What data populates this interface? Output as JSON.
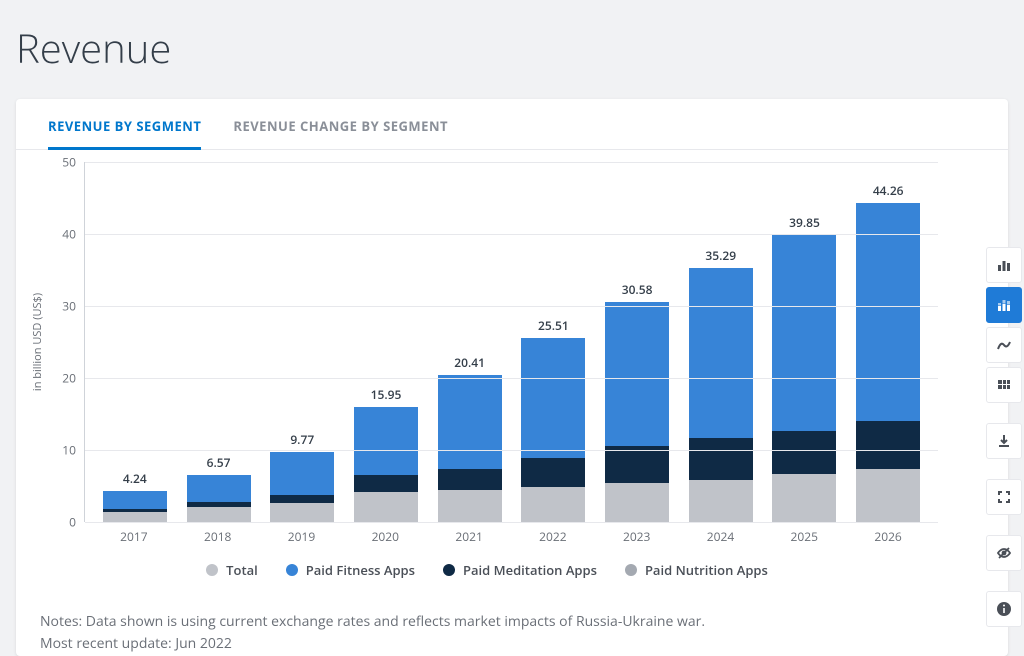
{
  "header": {
    "title": "Revenue"
  },
  "tabs": [
    {
      "label": "REVENUE BY SEGMENT",
      "active": true
    },
    {
      "label": "REVENUE CHANGE BY SEGMENT",
      "active": false
    }
  ],
  "chart": {
    "type": "stacked-bar",
    "ylabel": "in billion USD (US$)",
    "ymax": 50,
    "ytick_step": 10,
    "yticks": [
      0,
      10,
      20,
      30,
      40,
      50
    ],
    "categories": [
      "2017",
      "2018",
      "2019",
      "2020",
      "2021",
      "2022",
      "2023",
      "2024",
      "2025",
      "2026"
    ],
    "totals": [
      4.24,
      6.57,
      9.77,
      15.95,
      20.41,
      25.51,
      30.58,
      35.29,
      39.85,
      44.26
    ],
    "series": [
      {
        "name": "Total",
        "color": "#c0c3c9",
        "values": [
          1.45,
          2.15,
          2.6,
          4.2,
          4.4,
          4.9,
          5.4,
          5.9,
          6.6,
          7.4
        ]
      },
      {
        "name": "Paid Fitness Apps",
        "color": "#3784d7",
        "values": [
          2.49,
          3.82,
          6.07,
          9.45,
          13.08,
          16.56,
          20.08,
          23.59,
          27.15,
          30.26
        ]
      },
      {
        "name": "Paid Meditation Apps",
        "color": "#0f2a45",
        "values": [
          0.3,
          0.6,
          1.1,
          2.3,
          2.93,
          4.05,
          5.1,
          5.8,
          6.1,
          6.6
        ]
      },
      {
        "name": "Paid Nutrition Apps",
        "color": "#a4a9b1",
        "values": null
      }
    ],
    "legend_order": [
      "Total",
      "Paid Fitness Apps",
      "Paid Meditation Apps",
      "Paid Nutrition Apps"
    ],
    "background_color": "#ffffff",
    "grid_color": "#e7e8ec",
    "bar_width": 0.7,
    "label_fontsize": 12
  },
  "notes": [
    "Notes: Data shown is using current exchange rates and reflects market impacts of Russia-Ukraine war.",
    "Most recent update: Jun 2022"
  ],
  "toolbar": [
    {
      "name": "bar-chart-icon",
      "active": false
    },
    {
      "name": "stacked-bar-icon",
      "active": true
    },
    {
      "name": "line-chart-icon",
      "active": false
    },
    {
      "name": "table-icon",
      "active": false
    },
    {
      "name": "gap"
    },
    {
      "name": "download-icon",
      "active": false
    },
    {
      "name": "gap"
    },
    {
      "name": "fullscreen-icon",
      "active": false
    },
    {
      "name": "gap"
    },
    {
      "name": "hide-icon",
      "active": false
    },
    {
      "name": "gap"
    },
    {
      "name": "info-icon",
      "active": false
    }
  ]
}
